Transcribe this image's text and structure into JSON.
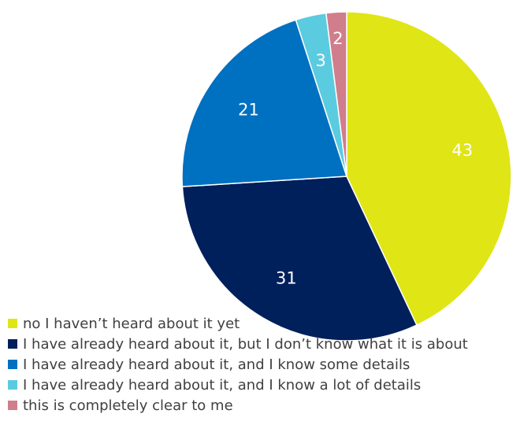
{
  "chart_data": {
    "type": "pie",
    "title": "",
    "start_angle_deg": 0,
    "direction": "clockwise",
    "slices": [
      {
        "label": "no I haven’t heard about it yet",
        "value": 43,
        "color": "#E0E516"
      },
      {
        "label": "I have already heard about it, but I don’t know what it is about",
        "value": 31,
        "color": "#00205B"
      },
      {
        "label": "I have already heard about it, and I know some details",
        "value": 21,
        "color": "#0070C0"
      },
      {
        "label": "I have already heard about it, and I know a lot of details",
        "value": 3,
        "color": "#5BCBE0"
      },
      {
        "label": "this is completely clear to me",
        "value": 2,
        "color": "#D07E8C"
      }
    ],
    "legend_position": "bottom-left",
    "data_labels": "inside",
    "data_label_color": "#FFFFFF"
  }
}
